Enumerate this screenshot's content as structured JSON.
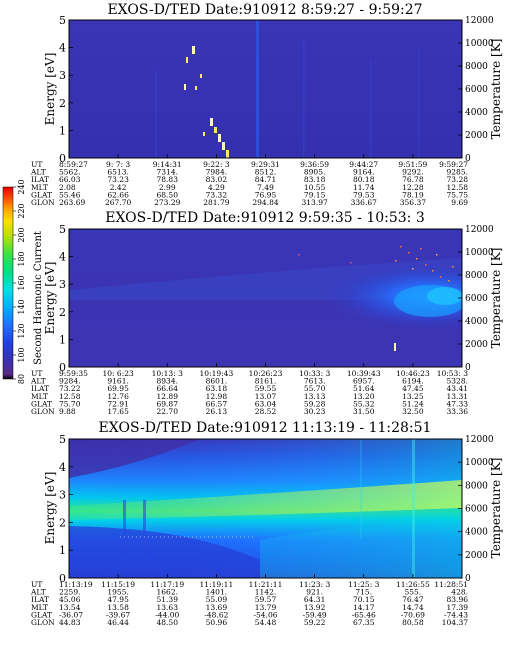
{
  "colorbar": {
    "label": "Second Harmonic Current",
    "ticks": [
      80,
      100,
      120,
      140,
      160,
      180,
      200,
      220,
      240
    ],
    "range": [
      80,
      240
    ],
    "stops": [
      {
        "v": 80,
        "c": "#000000"
      },
      {
        "v": 84,
        "c": "#5a2a8a"
      },
      {
        "v": 95,
        "c": "#3a30b0"
      },
      {
        "v": 110,
        "c": "#2040e0"
      },
      {
        "v": 125,
        "c": "#2070ff"
      },
      {
        "v": 140,
        "c": "#00b0ff"
      },
      {
        "v": 155,
        "c": "#00e0e0"
      },
      {
        "v": 170,
        "c": "#00e080"
      },
      {
        "v": 185,
        "c": "#40e040"
      },
      {
        "v": 200,
        "c": "#c0e000"
      },
      {
        "v": 212,
        "c": "#ffe000"
      },
      {
        "v": 222,
        "c": "#ffa000"
      },
      {
        "v": 232,
        "c": "#ff4000"
      },
      {
        "v": 240,
        "c": "#e00000"
      }
    ]
  },
  "chart_data": [
    {
      "type": "heatmap",
      "title": "EXOS-D/TED   Date:910912  8:59:27 - 9:59:27",
      "ylabel": "Energy [eV]",
      "ylabel_right": "Temperature [K]",
      "ylim": [
        0,
        5
      ],
      "yticks": [
        "0",
        "1",
        "2",
        "3",
        "4",
        "5"
      ],
      "ylim_right": [
        0,
        12000
      ],
      "yticks_right": [
        "0",
        "2000",
        "4000",
        "6000",
        "8000",
        "10000",
        "12000"
      ],
      "background_level": 108,
      "orbit_labels": [
        "UT",
        "ALT",
        "ILAT",
        "MLT",
        "GLAT",
        "GLON"
      ],
      "orbit_table": [
        [
          "8:59:27",
          "5562.",
          "66.03",
          "2.08",
          "55.46",
          "263.69"
        ],
        [
          "9: 7: 3",
          "6513.",
          "73.23",
          "2.42",
          "62.66",
          "267.70"
        ],
        [
          "9:14:31",
          "7314.",
          "78.83",
          "2.99",
          "68.50",
          "273.29"
        ],
        [
          "9:22: 3",
          "7984.",
          "83.02",
          "4.29",
          "73.32",
          "281.79"
        ],
        [
          "9:29:31",
          "8512.",
          "84.71",
          "7.49",
          "76.95",
          "294.84"
        ],
        [
          "9:36:59",
          "8905.",
          "83.18",
          "10.55",
          "79.15",
          "313.97"
        ],
        [
          "9:44:27",
          "9164.",
          "80.18",
          "11.74",
          "79.53",
          "336.67"
        ],
        [
          "9:51:59",
          "9292.",
          "76.78",
          "12.28",
          "78.19",
          "356.37"
        ],
        [
          "9:59:27",
          "9285.",
          "73.28",
          "12.58",
          "75.75",
          "9.69"
        ]
      ]
    },
    {
      "type": "heatmap",
      "title": "EXOS-D/TED   Date:910912  9:59:35 - 10:53: 3",
      "ylabel": "Energy [eV]",
      "ylabel_right": "Temperature [K]",
      "ylim": [
        0,
        5
      ],
      "yticks": [
        "0",
        "1",
        "2",
        "3",
        "4",
        "5"
      ],
      "ylim_right": [
        0,
        12000
      ],
      "yticks_right": [
        "0",
        "2000",
        "4000",
        "6000",
        "8000",
        "10000",
        "12000"
      ],
      "background_level": 112,
      "orbit_labels": [
        "UT",
        "ALT",
        "ILAT",
        "MLT",
        "GLAT",
        "GLON"
      ],
      "orbit_table": [
        [
          "9:59:35",
          "9284.",
          "73.22",
          "12.58",
          "75.70",
          "9.88"
        ],
        [
          "10: 6:23",
          "9161.",
          "69.95",
          "12.76",
          "72.91",
          "17.65"
        ],
        [
          "10:13: 3",
          "8934.",
          "66.64",
          "12.89",
          "69.87",
          "22.70"
        ],
        [
          "10:19:43",
          "8601.",
          "63.18",
          "12.98",
          "66.57",
          "26.13"
        ],
        [
          "10:26:23",
          "8161.",
          "59.55",
          "13.07",
          "63.04",
          "28.52"
        ],
        [
          "10:33: 3",
          "7613.",
          "55.70",
          "13.13",
          "59.28",
          "30.23"
        ],
        [
          "10:39:43",
          "6957.",
          "51.64",
          "13.20",
          "55.32",
          "31.50"
        ],
        [
          "10:46:23",
          "6194.",
          "47.45",
          "13.25",
          "51.24",
          "32.50"
        ],
        [
          "10:53: 3",
          "5328.",
          "43.41",
          "13.31",
          "47.33",
          "33.36"
        ]
      ]
    },
    {
      "type": "heatmap",
      "title": "EXOS-D/TED   Date:910912  11:13:19 - 11:28:51",
      "ylabel": "Energy [eV]",
      "ylabel_right": "Temperature [K]",
      "ylim": [
        0,
        5
      ],
      "yticks": [
        "0",
        "1",
        "2",
        "3",
        "4",
        "5"
      ],
      "ylim_right": [
        0,
        12000
      ],
      "yticks_right": [
        "0",
        "2000",
        "4000",
        "6000",
        "8000",
        "10000",
        "12000"
      ],
      "background_level": 130,
      "orbit_labels": [
        "UT",
        "ALT",
        "ILAT",
        "MLT",
        "GLAT",
        "GLON"
      ],
      "orbit_table": [
        [
          "11:13:19",
          "2259.",
          "45.06",
          "13.54",
          "-36.07",
          "44.83"
        ],
        [
          "11:15:19",
          "1955.",
          "47.95",
          "13.58",
          "-39.67",
          "46.44"
        ],
        [
          "11:17:19",
          "1662.",
          "51.39",
          "13.63",
          "-44.00",
          "48.50"
        ],
        [
          "11:19:11",
          "1401.",
          "55.09",
          "13.69",
          "-48.62",
          "50.96"
        ],
        [
          "11:21:11",
          "1142.",
          "59.57",
          "13.79",
          "-54.06",
          "54.48"
        ],
        [
          "11:23: 3",
          "921.",
          "64.31",
          "13.92",
          "-59.49",
          "59.22"
        ],
        [
          "11:25: 3",
          "715.",
          "70.15",
          "14.17",
          "-65.46",
          "67.35"
        ],
        [
          "11:26:55",
          "555.",
          "76.47",
          "14.74",
          "-70.69",
          "80.58"
        ],
        [
          "11:28:51",
          "428.",
          "83.96",
          "17.39",
          "-74.43",
          "104.37"
        ]
      ]
    }
  ]
}
